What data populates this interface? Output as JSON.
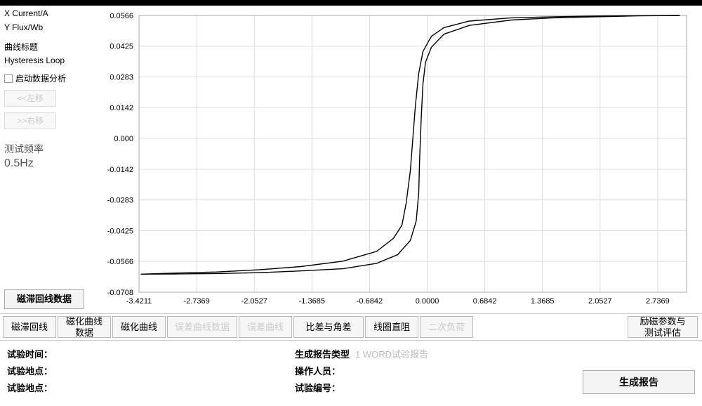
{
  "side": {
    "x_label": "X  Current/A",
    "y_label": "Y  Flux/Wb",
    "curve_title_lbl": "曲线标题",
    "curve_title_val": "Hysteresis Loop",
    "checkbox_label": "启动数据分析",
    "left_btn": "<<左移",
    "right_btn": ">>右移",
    "freq_title": "测试频率",
    "freq_value": "0.5Hz",
    "data_btn": "磁滞回线数据"
  },
  "chart": {
    "type": "line",
    "background_color": "#ffffff",
    "grid_color": "#dcdcdc",
    "axis_color": "#000000",
    "tick_font_size": 11,
    "line_color": "#000000",
    "line_width": 1.4,
    "xlim": [
      -3.4211,
      3.079
    ],
    "ylim": [
      -0.0708,
      0.0566
    ],
    "x_ticks": [
      -3.4211,
      -2.7369,
      -2.0527,
      -1.3685,
      -0.6842,
      0.0,
      0.6842,
      1.3685,
      2.0527,
      2.7369
    ],
    "y_ticks": [
      0.0566,
      0.0425,
      0.0283,
      0.0142,
      0.0,
      -0.0142,
      -0.0283,
      -0.0425,
      -0.0566,
      -0.0708
    ],
    "curve_inner": [
      [
        -3.4,
        -0.0625
      ],
      [
        -3.0,
        -0.062
      ],
      [
        -2.5,
        -0.0615
      ],
      [
        -2.0,
        -0.0605
      ],
      [
        -1.5,
        -0.059
      ],
      [
        -1.0,
        -0.0565
      ],
      [
        -0.6,
        -0.052
      ],
      [
        -0.4,
        -0.046
      ],
      [
        -0.3,
        -0.04
      ],
      [
        -0.25,
        -0.03
      ],
      [
        -0.2,
        -0.015
      ],
      [
        -0.17,
        0.0
      ],
      [
        -0.14,
        0.015
      ],
      [
        -0.1,
        0.03
      ],
      [
        -0.05,
        0.04
      ],
      [
        0.05,
        0.047
      ],
      [
        0.2,
        0.051
      ],
      [
        0.5,
        0.054
      ],
      [
        1.0,
        0.0555
      ],
      [
        1.5,
        0.056
      ],
      [
        2.0,
        0.0563
      ],
      [
        2.5,
        0.0565
      ],
      [
        3.0,
        0.0566
      ]
    ],
    "curve_outer": [
      [
        3.0,
        0.0566
      ],
      [
        2.5,
        0.0564
      ],
      [
        2.0,
        0.056
      ],
      [
        1.5,
        0.0555
      ],
      [
        1.0,
        0.0545
      ],
      [
        0.5,
        0.052
      ],
      [
        0.2,
        0.048
      ],
      [
        0.05,
        0.042
      ],
      [
        -0.02,
        0.035
      ],
      [
        -0.05,
        0.025
      ],
      [
        -0.07,
        0.01
      ],
      [
        -0.08,
        0.0
      ],
      [
        -0.09,
        -0.01
      ],
      [
        -0.1,
        -0.025
      ],
      [
        -0.13,
        -0.038
      ],
      [
        -0.2,
        -0.047
      ],
      [
        -0.35,
        -0.0535
      ],
      [
        -0.6,
        -0.0575
      ],
      [
        -1.0,
        -0.06
      ],
      [
        -1.5,
        -0.061
      ],
      [
        -2.0,
        -0.0618
      ],
      [
        -2.5,
        -0.0622
      ],
      [
        -3.0,
        -0.0624
      ],
      [
        -3.4,
        -0.0625
      ]
    ]
  },
  "tabs": {
    "t1": "磁滞回线",
    "t2": "磁化曲线\n数据",
    "t3": "磁化曲线",
    "t4": "误差曲线数据",
    "t5": "误差曲线",
    "t6": "比差与角差",
    "t7": "线圈直阻",
    "t8": "二次负荷",
    "t9": "励磁参数与\n测试评估"
  },
  "form": {
    "time_lbl": "试验时间：",
    "loc1_lbl": "试验地点：",
    "loc2_lbl": "试验地点：",
    "report_type_lbl": "生成报告类型",
    "report_type_val": "1 WORD试验报告",
    "operator_lbl": "操作人员：",
    "test_no_lbl": "试验编号：",
    "gen_btn": "生成报告"
  }
}
